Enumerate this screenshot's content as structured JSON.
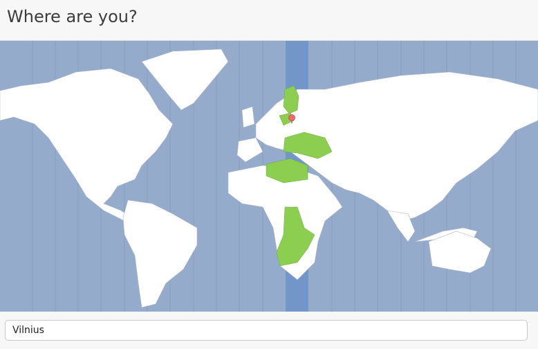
{
  "header": {
    "title": "Where are you?"
  },
  "map": {
    "ocean_color": "#95abcc",
    "selected_zone_color": "#7396c8",
    "highlight_color": "#8ccf50",
    "land_color": "#ffffff",
    "pin_color": "#f06a6a",
    "pin_icon": "location-pin-icon"
  },
  "location": {
    "value": "Vilnius"
  }
}
